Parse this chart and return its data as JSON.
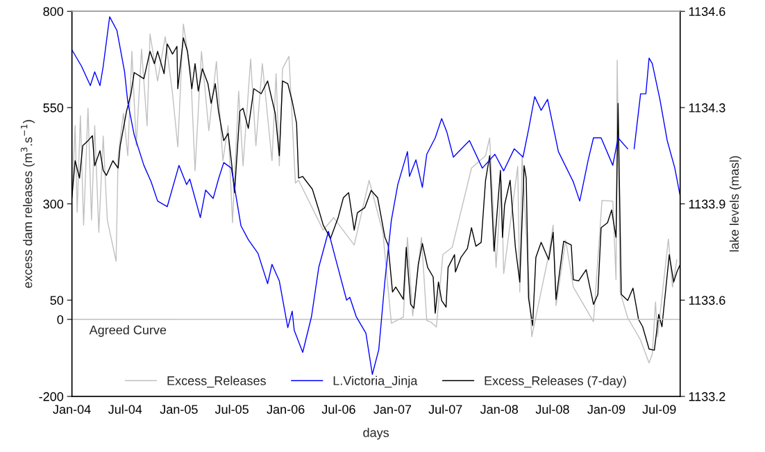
{
  "chart_data": {
    "type": "line",
    "xlabel": "days",
    "ylabel": "excess dam releases (m$^{3}$.s$^{−1}$)",
    "y2label": "lake levels (masl)",
    "xlim": [
      "2004-01-01",
      "2009-09-10"
    ],
    "xticks": [
      {
        "value": "2004-01-01",
        "label": "Jan-04"
      },
      {
        "value": "2004-07-01",
        "label": "Jul-04"
      },
      {
        "value": "2005-01-01",
        "label": "Jan-05"
      },
      {
        "value": "2005-07-01",
        "label": "Jul-05"
      },
      {
        "value": "2006-01-01",
        "label": "Jan-06"
      },
      {
        "value": "2006-07-01",
        "label": "Jul-06"
      },
      {
        "value": "2007-01-01",
        "label": "Jan-07"
      },
      {
        "value": "2007-07-01",
        "label": "Jul-07"
      },
      {
        "value": "2008-01-01",
        "label": "Jan-08"
      },
      {
        "value": "2008-07-01",
        "label": "Jul-08"
      },
      {
        "value": "2009-01-01",
        "label": "Jan-09"
      },
      {
        "value": "2009-07-01",
        "label": "Jul-09"
      }
    ],
    "ylim": [
      -200,
      800
    ],
    "yticks": [
      -200,
      0,
      50,
      300,
      550,
      800
    ],
    "y2lim": [
      1133.2,
      1134.6
    ],
    "y2ticks": [
      1133.2,
      {
        "value": 1133.55,
        "label": "1133.6"
      },
      1133.9,
      {
        "value": 1134.25,
        "label": "1134.3"
      },
      1134.6
    ],
    "ref_lines": [
      {
        "axis": "y",
        "value": 0,
        "label": "Agreed Curve",
        "color": "#c0c0c0"
      }
    ],
    "legend": "bottom",
    "marker": "none",
    "line_style": "solid",
    "series": [
      {
        "name": "Excess_Releases",
        "color": "#c0c0c0",
        "x": [
          "2004-01-01",
          "2004-01-12",
          "2004-01-19",
          "2004-01-30",
          "2004-02-10",
          "2004-02-25",
          "2004-03-08",
          "2004-03-19",
          "2004-04-02",
          "2004-04-17",
          "2004-05-01",
          "2004-05-31",
          "2004-06-07",
          "2004-06-25",
          "2004-07-10",
          "2004-07-24",
          "2004-08-08",
          "2004-08-26",
          "2004-09-14",
          "2004-09-24",
          "2004-10-20",
          "2004-11-15",
          "2004-12-10",
          "2004-12-28",
          "2005-01-16",
          "2005-02-10",
          "2005-02-25",
          "2005-03-19",
          "2005-04-13",
          "2005-05-09",
          "2005-05-31",
          "2005-06-18",
          "2005-07-03",
          "2005-07-24",
          "2005-08-08",
          "2005-09-03",
          "2005-09-21",
          "2005-10-13",
          "2005-11-15",
          "2005-11-29",
          "2005-12-10",
          "2005-12-21",
          "2006-01-12",
          "2006-02-03",
          "2006-02-14",
          "2006-05-09",
          "2006-06-14",
          "2006-08-23",
          "2006-10-13",
          "2006-11-29",
          "2006-12-28",
          "2007-02-07",
          "2007-02-21",
          "2007-03-11",
          "2007-04-10",
          "2007-04-28",
          "2007-05-12",
          "2007-05-31",
          "2007-06-22",
          "2007-07-24",
          "2007-09-28",
          "2007-11-15",
          "2007-11-29",
          "2007-12-21",
          "2008-01-08",
          "2008-01-16",
          "2008-03-04",
          "2008-03-11",
          "2008-03-19",
          "2008-04-21",
          "2008-06-18",
          "2008-07-03",
          "2008-07-13",
          "2008-08-15",
          "2008-09-10",
          "2008-11-18",
          "2008-12-17",
          "2009-01-23",
          "2009-02-03",
          "2009-02-07",
          "2009-02-17",
          "2009-03-15",
          "2009-04-28",
          "2009-05-27",
          "2009-06-07",
          "2009-06-18",
          "2009-06-25",
          "2009-08-01",
          "2009-08-15",
          "2009-08-30"
        ],
        "values": [
          316,
          503,
          278,
          529,
          245,
          548,
          258,
          503,
          226,
          476,
          258,
          151,
          425,
          535,
          425,
          696,
          451,
          702,
          503,
          741,
          619,
          734,
          586,
          448,
          767,
          644,
          386,
          696,
          490,
          670,
          412,
          503,
          251,
          593,
          399,
          676,
          451,
          664,
          412,
          638,
          399,
          651,
          683,
          354,
          361,
          232,
          264,
          193,
          361,
          226,
          -10,
          6,
          213,
          9,
          213,
          -3,
          -7,
          -20,
          168,
          187,
          393,
          425,
          471,
          135,
          361,
          119,
          397,
          71,
          425,
          -45,
          168,
          245,
          36,
          206,
          84,
          -6,
          309,
          307,
          103,
          673,
          71,
          4,
          -54,
          -113,
          -90,
          45,
          -45,
          209,
          84,
          155
        ]
      },
      {
        "name": "L.Victoria_Jinja",
        "color": "#0000ff",
        "axis": "y2",
        "x": [
          "2004-01-01",
          "2004-02-03",
          "2004-03-04",
          "2004-03-19",
          "2004-04-06",
          "2004-04-17",
          "2004-05-09",
          "2004-06-03",
          "2004-06-29",
          "2004-07-10",
          "2004-08-01",
          "2004-09-03",
          "2004-09-28",
          "2004-10-20",
          "2004-11-22",
          "2005-01-01",
          "2005-01-27",
          "2005-02-07",
          "2005-03-15",
          "2005-04-02",
          "2005-04-28",
          "2005-05-16",
          "2005-06-03",
          "2005-06-29",
          "2005-08-01",
          "2005-08-26",
          "2005-09-28",
          "2005-10-31",
          "2005-11-15",
          "2005-12-10",
          "2006-01-08",
          "2006-01-23",
          "2006-01-30",
          "2006-02-28",
          "2006-03-30",
          "2006-04-24",
          "2006-05-27",
          "2006-06-18",
          "2006-07-28",
          "2006-08-08",
          "2006-08-30",
          "2006-10-02",
          "2006-10-24",
          "2006-11-15",
          "2006-12-06",
          "2006-12-28",
          "2007-01-19",
          "2007-02-21",
          "2007-02-28",
          "2007-03-22",
          "2007-04-13",
          "2007-04-28",
          "2007-05-27",
          "2007-06-18",
          "2007-07-06",
          "2007-07-28",
          "2007-09-21",
          "2007-11-04",
          "2007-12-17",
          "2008-01-16",
          "2008-02-21",
          "2008-03-22",
          "2008-04-10",
          "2008-05-01",
          "2008-05-23",
          "2008-06-14",
          "2008-07-21",
          "2008-09-10",
          "2008-10-02",
          "2008-10-31",
          "2008-11-18",
          "2008-12-14",
          "2009-01-23",
          "2009-02-10",
          "2009-03-15",
          "2009-03-26",
          "2009-04-06",
          "2009-04-28",
          "2009-05-16",
          "2009-05-27",
          "2009-06-07",
          "2009-07-03",
          "2009-07-28",
          "2009-08-23",
          "2009-09-10"
        ],
        "values": [
          1134.46,
          1134.4,
          1134.33,
          1134.38,
          1134.33,
          1134.4,
          1134.58,
          1134.53,
          1134.38,
          1134.27,
          1134.15,
          1134.04,
          1133.98,
          1133.91,
          1133.89,
          1134.04,
          1133.97,
          1133.99,
          1133.85,
          1133.95,
          1133.92,
          1133.99,
          1134.05,
          1134.03,
          1133.82,
          1133.77,
          1133.72,
          1133.61,
          1133.68,
          1133.62,
          1133.45,
          1133.51,
          1133.44,
          1133.36,
          1133.49,
          1133.67,
          1133.8,
          1133.71,
          1133.55,
          1133.56,
          1133.49,
          1133.43,
          1133.28,
          1133.37,
          1133.62,
          1133.84,
          1133.97,
          1134.09,
          1134.0,
          1134.06,
          1133.96,
          1134.08,
          1134.14,
          1134.21,
          1134.16,
          1134.07,
          1134.13,
          1134.03,
          1134.08,
          1134.02,
          1134.1,
          1134.07,
          1134.17,
          1134.29,
          1134.24,
          1134.28,
          1134.09,
          1133.98,
          1133.91,
          1134.06,
          1134.14,
          1134.14,
          1134.04,
          1134.14,
          1134.1,
          null,
          1134.1,
          1134.3,
          1134.3,
          1134.43,
          1134.41,
          1134.28,
          1134.13,
          1134.03,
          1133.93
        ]
      },
      {
        "name": "Excess_Releases (7-day)",
        "color": "#000000",
        "x": [
          "2004-01-01",
          "2004-01-12",
          "2004-01-27",
          "2004-02-07",
          "2004-02-25",
          "2004-03-11",
          "2004-03-19",
          "2004-04-06",
          "2004-04-17",
          "2004-04-28",
          "2004-05-20",
          "2004-06-07",
          "2004-06-14",
          "2004-07-06",
          "2004-07-21",
          "2004-08-01",
          "2004-09-03",
          "2004-09-24",
          "2004-10-09",
          "2004-10-20",
          "2004-11-11",
          "2004-11-22",
          "2004-12-10",
          "2004-12-25",
          "2004-12-28",
          "2005-01-16",
          "2005-01-30",
          "2005-02-14",
          "2005-02-25",
          "2005-03-08",
          "2005-03-22",
          "2005-04-10",
          "2005-04-21",
          "2005-05-05",
          "2005-05-16",
          "2005-06-03",
          "2005-06-18",
          "2005-06-29",
          "2005-07-10",
          "2005-07-28",
          "2005-08-08",
          "2005-08-26",
          "2005-09-14",
          "2005-10-09",
          "2005-10-31",
          "2005-11-26",
          "2005-12-10",
          "2005-12-21",
          "2006-01-08",
          "2006-01-23",
          "2006-02-07",
          "2006-02-14",
          "2006-02-28",
          "2006-04-02",
          "2006-04-24",
          "2006-05-09",
          "2006-06-03",
          "2006-06-29",
          "2006-07-17",
          "2006-08-04",
          "2006-08-23",
          "2006-09-03",
          "2006-09-28",
          "2006-10-20",
          "2006-11-11",
          "2006-12-06",
          "2006-12-17",
          "2007-01-01",
          "2007-01-12",
          "2007-02-07",
          "2007-02-17",
          "2007-03-04",
          "2007-03-15",
          "2007-03-30",
          "2007-04-13",
          "2007-05-01",
          "2007-05-20",
          "2007-05-27",
          "2007-06-07",
          "2007-06-18",
          "2007-07-03",
          "2007-07-10",
          "2007-08-01",
          "2007-08-04",
          "2007-08-23",
          "2007-09-14",
          "2007-09-28",
          "2007-10-13",
          "2007-10-31",
          "2007-11-15",
          "2007-11-29",
          "2007-12-14",
          "2008-01-05",
          "2008-01-12",
          "2008-01-19",
          "2008-02-07",
          "2008-02-25",
          "2008-03-11",
          "2008-03-26",
          "2008-04-02",
          "2008-04-10",
          "2008-04-24",
          "2008-05-05",
          "2008-05-23",
          "2008-06-18",
          "2008-07-03",
          "2008-07-13",
          "2008-08-08",
          "2008-09-03",
          "2008-09-10",
          "2008-09-28",
          "2008-10-24",
          "2008-11-18",
          "2008-12-03",
          "2008-12-14",
          "2009-01-05",
          "2009-01-19",
          "2009-02-03",
          "2009-02-10",
          "2009-02-21",
          "2009-03-15",
          "2009-04-02",
          "2009-04-21",
          "2009-05-05",
          "2009-05-27",
          "2009-06-14",
          "2009-06-29",
          "2009-07-10",
          "2009-08-04",
          "2009-08-19",
          "2009-08-30",
          "2009-09-10"
        ],
        "values": [
          316,
          412,
          367,
          451,
          464,
          477,
          399,
          438,
          387,
          374,
          412,
          393,
          451,
          541,
          586,
          641,
          625,
          696,
          664,
          696,
          638,
          715,
          689,
          709,
          599,
          731,
          696,
          599,
          664,
          593,
          651,
          612,
          561,
          612,
          541,
          464,
          483,
          412,
          329,
          541,
          548,
          496,
          599,
          586,
          619,
          535,
          425,
          619,
          612,
          567,
          509,
          367,
          371,
          338,
          284,
          245,
          210,
          264,
          316,
          329,
          232,
          277,
          290,
          335,
          316,
          213,
          193,
          71,
          84,
          52,
          187,
          39,
          29,
          142,
          197,
          135,
          110,
          16,
          97,
          49,
          32,
          135,
          168,
          123,
          161,
          184,
          238,
          190,
          200,
          361,
          425,
          177,
          387,
          213,
          297,
          361,
          187,
          97,
          399,
          367,
          55,
          -16,
          161,
          200,
          155,
          226,
          52,
          203,
          193,
          103,
          100,
          129,
          39,
          65,
          238,
          251,
          284,
          213,
          561,
          65,
          49,
          81,
          0,
          -19,
          -77,
          -80,
          13,
          -19,
          168,
          97,
          123,
          142
        ]
      }
    ]
  }
}
